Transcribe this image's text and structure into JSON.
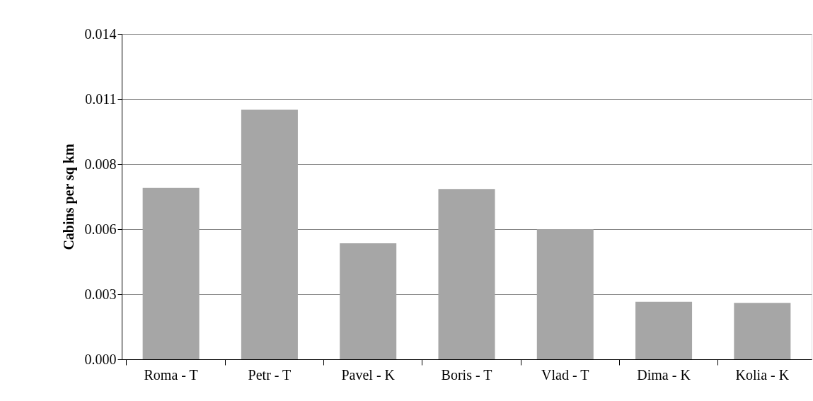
{
  "chart_data": {
    "type": "bar",
    "ylabel": "Cabins per sq km",
    "categories": [
      "Roma - T",
      "Petr - T",
      "Pavel - K",
      "Boris - T",
      "Vlad - T",
      "Dima - K",
      "Kolia - K"
    ],
    "values": [
      0.00737,
      0.01074,
      0.00499,
      0.00733,
      0.0056,
      0.00247,
      0.00243
    ],
    "color": "#a6a6a6",
    "ylim": [
      0,
      0.014
    ],
    "yticks": [
      {
        "value": 0,
        "label": "0.000"
      },
      {
        "value": 0.0028,
        "label": "0.003"
      },
      {
        "value": 0.0056,
        "label": "0.006"
      },
      {
        "value": 0.0084,
        "label": "0.008"
      },
      {
        "value": 0.0112,
        "label": "0.011"
      },
      {
        "value": 0.014,
        "label": "0.014"
      }
    ],
    "grid": "y"
  }
}
